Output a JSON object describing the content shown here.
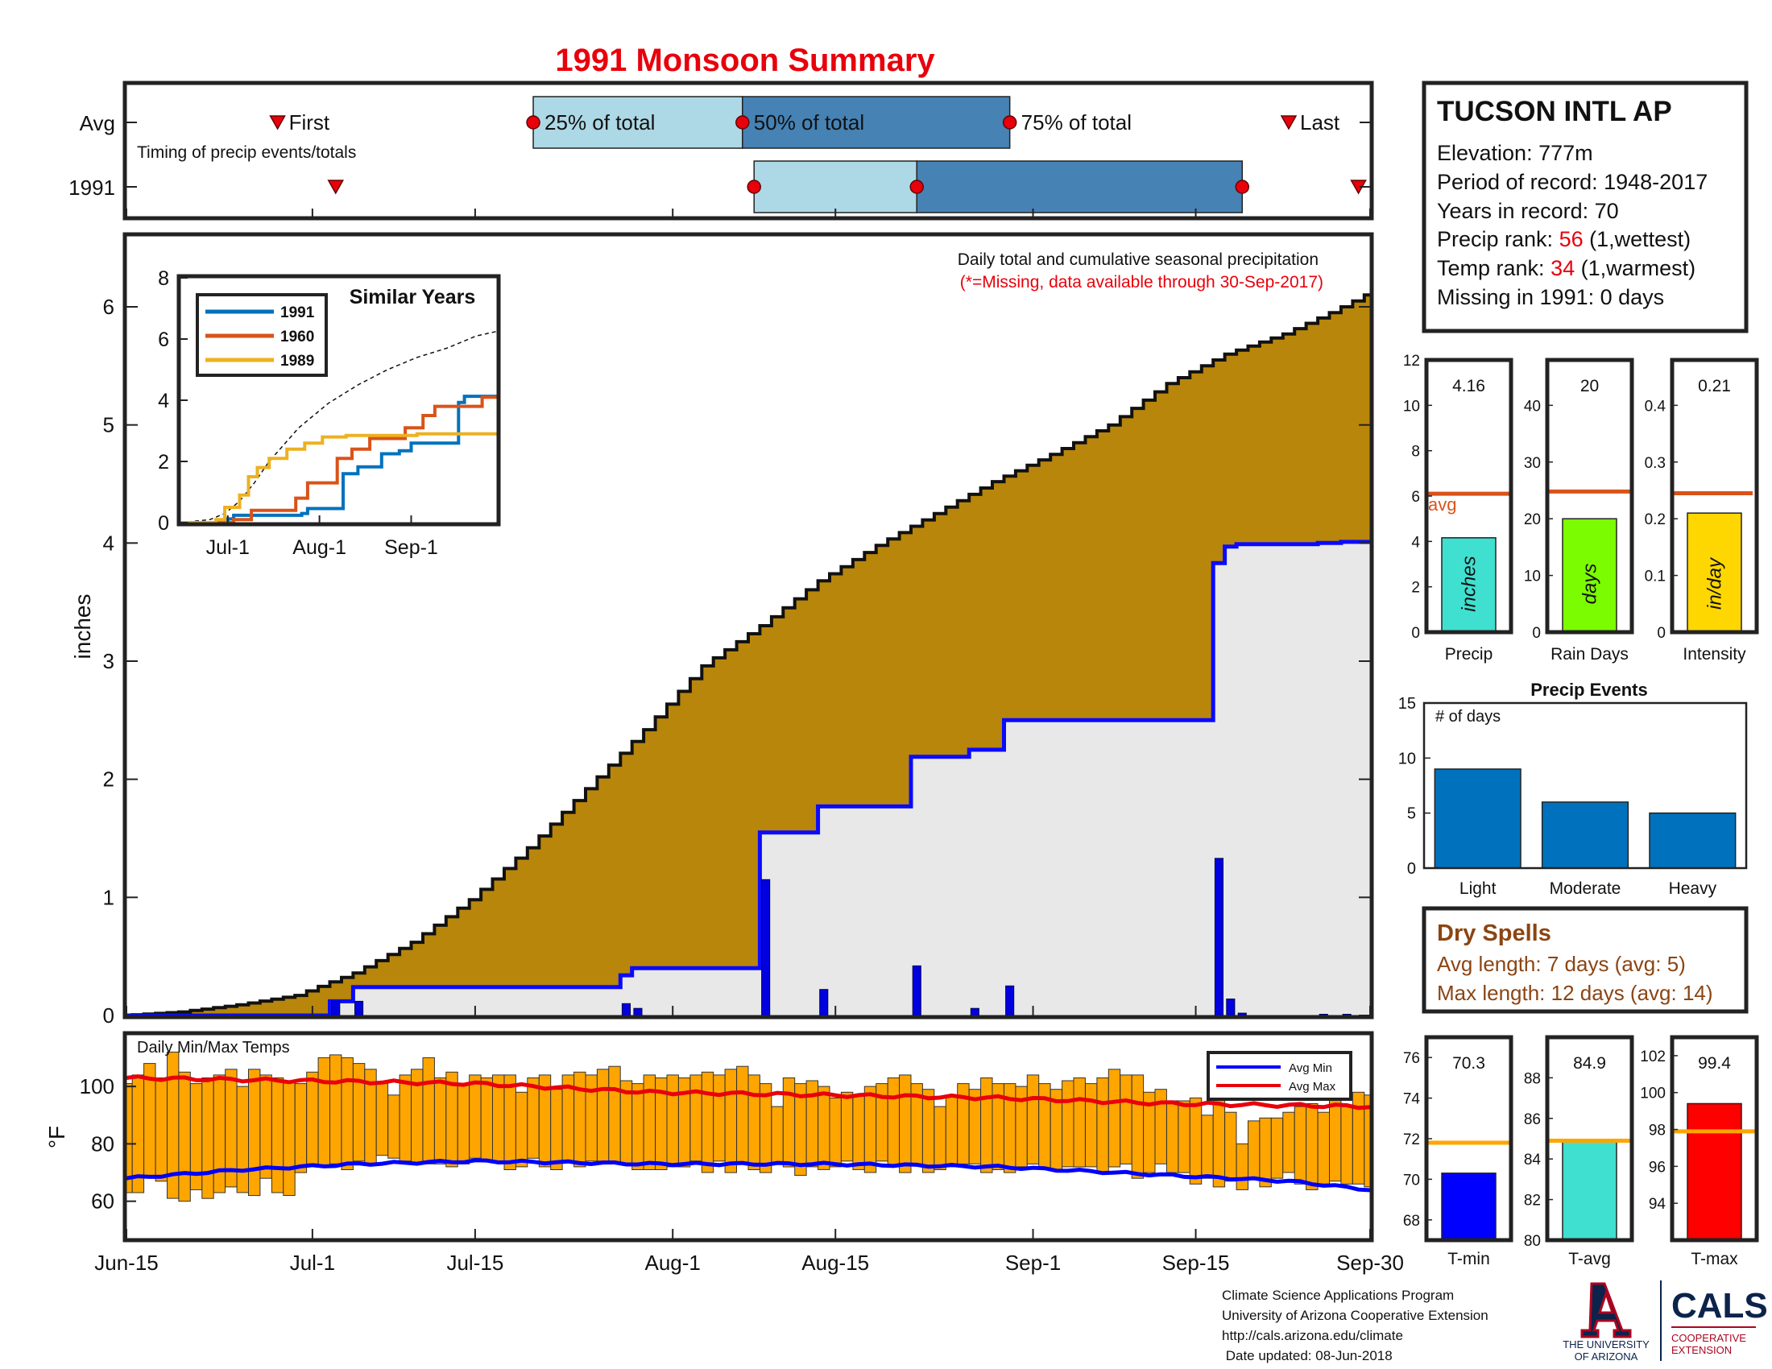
{
  "title": "1991 Monsoon Summary",
  "timing": {
    "row_labels": [
      "Avg",
      "1991"
    ],
    "caption": "Timing of precip events/totals",
    "avg_labels": [
      "First",
      "25% of total",
      "50% of total",
      "75% of total",
      "Last"
    ],
    "avg_dates": [
      "2018-06-28",
      "2018-07-20",
      "2018-08-07",
      "2018-08-30",
      "2018-09-23"
    ],
    "year_dates": [
      "2018-07-03",
      "2018-08-08",
      "2018-08-22",
      "2018-09-19",
      "2018-09-29"
    ],
    "colors": {
      "inner": "#add8e6",
      "outer": "#4682b4",
      "marker": "#e8000b"
    }
  },
  "station": {
    "name": "TUCSON INTL AP",
    "elevation_label": "Elevation: 777m",
    "period_label": "Period of record: 1948-2017",
    "years_label": "Years in record: 70",
    "precip_rank_prefix": "Precip rank: ",
    "precip_rank": "56",
    "precip_rank_suffix": " (1,wettest)",
    "temp_rank_prefix": "Temp rank: ",
    "temp_rank": "34",
    "temp_rank_suffix": " (1,warmest)",
    "missing_label": "Missing in 1991: 0 days"
  },
  "main_chart": {
    "annotation": "Daily total and cumulative seasonal precipitation",
    "note": "(*=Missing, data available through 30-Sep-2017)",
    "ylabel": "inches",
    "ylim": [
      0,
      6.6
    ],
    "yticks": [
      0,
      1,
      2,
      3,
      4,
      5,
      6
    ],
    "xticks": [
      {
        "label": "Jun-15",
        "day": 0
      },
      {
        "label": "Jul-1",
        "day": 16
      },
      {
        "label": "Jul-15",
        "day": 30
      },
      {
        "label": "Aug-1",
        "day": 47
      },
      {
        "label": "Aug-15",
        "day": 61
      },
      {
        "label": "Sep-1",
        "day": 78
      },
      {
        "label": "Sep-15",
        "day": 92
      },
      {
        "label": "Sep-30",
        "day": 107
      }
    ],
    "avg_cumulative_knots": [
      [
        0,
        0
      ],
      [
        5,
        0.03
      ],
      [
        10,
        0.09
      ],
      [
        15,
        0.17
      ],
      [
        20,
        0.36
      ],
      [
        25,
        0.62
      ],
      [
        30,
        0.98
      ],
      [
        35,
        1.42
      ],
      [
        40,
        1.92
      ],
      [
        45,
        2.42
      ],
      [
        50,
        2.96
      ],
      [
        55,
        3.3
      ],
      [
        60,
        3.68
      ],
      [
        65,
        3.98
      ],
      [
        70,
        4.25
      ],
      [
        75,
        4.52
      ],
      [
        80,
        4.75
      ],
      [
        85,
        5.0
      ],
      [
        90,
        5.35
      ],
      [
        95,
        5.6
      ],
      [
        100,
        5.77
      ],
      [
        104,
        5.95
      ],
      [
        107,
        6.1
      ]
    ],
    "year_daily": [
      {
        "day": 18,
        "value": 0.12
      },
      {
        "day": 20,
        "value": 0.12
      },
      {
        "day": 43,
        "value": 0.1
      },
      {
        "day": 44,
        "value": 0.06
      },
      {
        "day": 55,
        "value": 1.15
      },
      {
        "day": 60,
        "value": 0.22
      },
      {
        "day": 68,
        "value": 0.42
      },
      {
        "day": 73,
        "value": 0.06
      },
      {
        "day": 76,
        "value": 0.25
      },
      {
        "day": 94,
        "value": 1.33
      },
      {
        "day": 95,
        "value": 0.14
      },
      {
        "day": 96,
        "value": 0.02
      },
      {
        "day": 103,
        "value": 0.01
      },
      {
        "day": 105,
        "value": 0.01
      }
    ],
    "colors": {
      "avg_fill": "#b8860b",
      "year_fill": "#e8e8e8",
      "year_line": "#0a0aff",
      "daily_bar": "#0000e0"
    }
  },
  "similar_years": {
    "title": "Similar Years",
    "xticks": [
      {
        "label": "Jul-1",
        "day": 16
      },
      {
        "label": "Aug-1",
        "day": 47
      },
      {
        "label": "Sep-1",
        "day": 78
      }
    ],
    "yticks": [
      0,
      2,
      4,
      6,
      8
    ],
    "ylim": [
      0,
      8
    ],
    "avg_knots": [
      [
        0,
        0
      ],
      [
        10,
        0.1
      ],
      [
        15,
        0.3
      ],
      [
        20,
        0.7
      ],
      [
        25,
        1.3
      ],
      [
        30,
        2.0
      ],
      [
        40,
        3.1
      ],
      [
        50,
        3.9
      ],
      [
        60,
        4.5
      ],
      [
        70,
        5.0
      ],
      [
        80,
        5.4
      ],
      [
        90,
        5.7
      ],
      [
        100,
        6.1
      ],
      [
        107,
        6.25
      ]
    ],
    "series": [
      {
        "name": "1991",
        "color": "#0072bd",
        "steps": [
          [
            0,
            0
          ],
          [
            16,
            0.12
          ],
          [
            18,
            0.24
          ],
          [
            30,
            0.24
          ],
          [
            41,
            0.3
          ],
          [
            43,
            0.46
          ],
          [
            53,
            0.46
          ],
          [
            55,
            1.6
          ],
          [
            58,
            1.6
          ],
          [
            60,
            1.82
          ],
          [
            66,
            1.82
          ],
          [
            68,
            2.25
          ],
          [
            72,
            2.25
          ],
          [
            74,
            2.35
          ],
          [
            78,
            2.6
          ],
          [
            90,
            2.6
          ],
          [
            94,
            3.93
          ],
          [
            96,
            4.13
          ],
          [
            107,
            4.16
          ]
        ]
      },
      {
        "name": "1960",
        "color": "#d95319",
        "steps": [
          [
            0,
            0
          ],
          [
            18,
            0.1
          ],
          [
            24,
            0.4
          ],
          [
            35,
            0.4
          ],
          [
            39,
            0.8
          ],
          [
            43,
            1.3
          ],
          [
            50,
            1.3
          ],
          [
            53,
            2.1
          ],
          [
            58,
            2.4
          ],
          [
            64,
            2.75
          ],
          [
            72,
            2.75
          ],
          [
            76,
            3.1
          ],
          [
            82,
            3.5
          ],
          [
            86,
            3.8
          ],
          [
            96,
            3.8
          ],
          [
            102,
            4.1
          ],
          [
            107,
            4.1
          ]
        ]
      },
      {
        "name": "1989",
        "color": "#edb120",
        "steps": [
          [
            0,
            0
          ],
          [
            12,
            0.1
          ],
          [
            15,
            0.5
          ],
          [
            20,
            0.9
          ],
          [
            23,
            1.5
          ],
          [
            26,
            1.8
          ],
          [
            30,
            2.1
          ],
          [
            36,
            2.4
          ],
          [
            42,
            2.6
          ],
          [
            48,
            2.8
          ],
          [
            56,
            2.85
          ],
          [
            70,
            2.85
          ],
          [
            80,
            2.9
          ],
          [
            107,
            2.9
          ]
        ]
      }
    ]
  },
  "summary_bars": [
    {
      "value_label": "4.16",
      "value": 4.16,
      "avg": 6.1,
      "ylim": [
        0,
        12
      ],
      "yticks": [
        0,
        2,
        4,
        6,
        8,
        10,
        12
      ],
      "color": "#40e0d0",
      "unit": "inches",
      "xlabel": "Precip",
      "avg_text": "avg"
    },
    {
      "value_label": "20",
      "value": 20,
      "avg": 24.8,
      "ylim": [
        0,
        48
      ],
      "yticks": [
        0,
        10,
        20,
        30,
        40
      ],
      "color": "#7cfc00",
      "unit": "days",
      "xlabel": "Rain Days"
    },
    {
      "value_label": "0.21",
      "value": 0.21,
      "avg": 0.245,
      "ylim": [
        0,
        0.48
      ],
      "yticks": [
        0,
        0.1,
        0.2,
        0.3,
        0.4
      ],
      "color": "#ffd700",
      "unit": "in/day",
      "xlabel": "Intensity"
    }
  ],
  "precip_events": {
    "title": "Precip Events",
    "ylabel_inside": "# of days",
    "ylim": [
      0,
      15
    ],
    "yticks": [
      0,
      5,
      10,
      15
    ],
    "categories": [
      "Light",
      "Moderate",
      "Heavy"
    ],
    "values": [
      9,
      6,
      5
    ],
    "color": "#0072bd"
  },
  "dry_spells": {
    "title": "Dry Spells",
    "avg_length": "Avg length: 7 days (avg: 5)",
    "max_length": "Max length: 12 days (avg: 14)",
    "color": "#8b4513"
  },
  "temps": {
    "label": "Daily Min/Max Temps",
    "ylabel": "°F",
    "ylim": [
      47,
      118
    ],
    "yticks": [
      60,
      80,
      100
    ],
    "legend": [
      "Avg Min",
      "Avg Max"
    ],
    "avg_max_knots": [
      [
        0,
        103
      ],
      [
        15,
        102
      ],
      [
        30,
        101
      ],
      [
        45,
        98
      ],
      [
        60,
        97
      ],
      [
        75,
        96
      ],
      [
        90,
        94
      ],
      [
        107,
        93
      ]
    ],
    "avg_min_knots": [
      [
        0,
        68
      ],
      [
        10,
        71
      ],
      [
        20,
        73
      ],
      [
        30,
        74
      ],
      [
        45,
        73
      ],
      [
        60,
        73
      ],
      [
        75,
        72
      ],
      [
        90,
        69
      ],
      [
        100,
        67
      ],
      [
        107,
        64
      ]
    ],
    "daily_max": [
      101,
      104,
      108,
      103,
      112,
      105,
      101,
      103,
      104,
      106,
      100,
      106,
      104,
      103,
      102,
      101,
      105,
      110,
      111,
      110,
      108,
      106,
      101,
      97,
      104,
      106,
      110,
      103,
      105,
      101,
      104,
      103,
      104,
      104,
      98,
      103,
      104,
      99,
      104,
      105,
      104,
      106,
      107,
      102,
      101,
      104,
      103,
      104,
      103,
      104,
      105,
      104,
      106,
      107,
      104,
      101,
      93,
      103,
      101,
      102,
      100,
      96,
      98,
      97,
      100,
      101,
      103,
      104,
      101,
      99,
      93,
      97,
      101,
      99,
      103,
      101,
      101,
      100,
      104,
      101,
      99,
      102,
      103,
      101,
      103,
      106,
      104,
      104,
      98,
      99,
      95,
      95,
      96,
      90,
      96,
      91,
      80,
      88,
      89,
      89,
      91,
      93,
      94,
      91,
      96,
      93,
      98,
      97
    ],
    "daily_min": [
      63,
      63,
      68,
      67,
      61,
      60,
      64,
      61,
      63,
      65,
      63,
      62,
      68,
      63,
      62,
      70,
      73,
      72,
      73,
      71,
      74,
      73,
      76,
      75,
      74,
      73,
      73,
      73,
      72,
      73,
      75,
      74,
      74,
      71,
      72,
      75,
      72,
      71,
      74,
      72,
      74,
      74,
      73,
      73,
      71,
      71,
      71,
      72,
      72,
      74,
      70,
      74,
      70,
      73,
      71,
      70,
      73,
      72,
      69,
      72,
      71,
      72,
      74,
      71,
      70,
      74,
      72,
      70,
      73,
      70,
      71,
      72,
      73,
      73,
      70,
      71,
      70,
      72,
      73,
      71,
      71,
      72,
      72,
      72,
      70,
      72,
      73,
      68,
      70,
      73,
      70,
      70,
      66,
      68,
      65,
      67,
      64,
      68,
      65,
      68,
      70,
      66,
      64,
      66,
      67,
      66,
      66,
      65
    ],
    "colors": {
      "bar": "#ffa500",
      "avg_max": "#e8000b",
      "avg_min": "#0000ff"
    }
  },
  "temp_bars": [
    {
      "value_label": "70.3",
      "value": 70.3,
      "avg": 71.8,
      "ylim": [
        67,
        77
      ],
      "yticks": [
        68,
        70,
        72,
        74,
        76
      ],
      "color": "#0000ff",
      "xlabel": "T-min"
    },
    {
      "value_label": "84.9",
      "value": 84.9,
      "avg": 84.9,
      "ylim": [
        80,
        90
      ],
      "yticks": [
        80,
        82,
        84,
        86,
        88
      ],
      "color": "#40e0d0",
      "xlabel": "T-avg"
    },
    {
      "value_label": "99.4",
      "value": 99.4,
      "avg": 97.9,
      "ylim": [
        92,
        103
      ],
      "yticks": [
        94,
        96,
        98,
        100,
        102
      ],
      "color": "#ff0000",
      "xlabel": "T-max"
    }
  ],
  "footer": {
    "lines": [
      "Climate Science Applications Program",
      "University of Arizona Cooperative Extension",
      "http://cals.arizona.edu/climate",
      " Date updated: 08-Jun-2018"
    ],
    "logo_university": [
      "THE UNIVERSITY",
      "OF ARIZONA"
    ],
    "logo_cals": "CALS",
    "logo_extension": [
      "COOPERATIVE",
      "EXTENSION"
    ]
  }
}
